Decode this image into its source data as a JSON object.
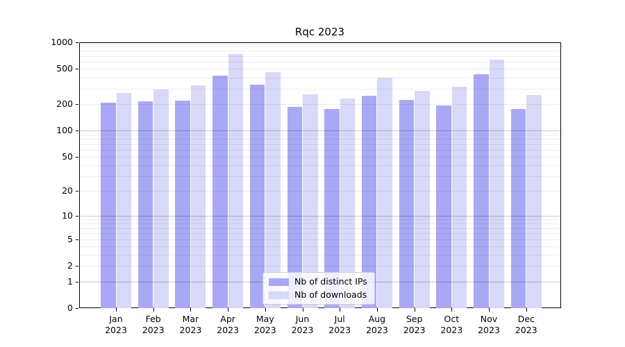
{
  "title": "Rqc 2023",
  "colors": {
    "bar_distinct_ips": "#a8a8f6",
    "bar_downloads": "#d8d8f9",
    "axis": "#000000",
    "legend_border": "#cccccc"
  },
  "chart_data": {
    "type": "bar",
    "title": "Rqc 2023",
    "categories": [
      "Jan 2023",
      "Feb 2023",
      "Mar 2023",
      "Apr 2023",
      "May 2023",
      "Jun 2023",
      "Jul 2023",
      "Aug 2023",
      "Sep 2023",
      "Oct 2023",
      "Nov 2023",
      "Dec 2023"
    ],
    "series": [
      {
        "name": "Nb of distinct IPs",
        "color": "#a8a8f6",
        "values": [
          208,
          215,
          218,
          418,
          334,
          185,
          176,
          250,
          223,
          192,
          436,
          177
        ]
      },
      {
        "name": "Nb of downloads",
        "color": "#d8d8f9",
        "values": [
          266,
          292,
          324,
          740,
          457,
          258,
          233,
          401,
          282,
          317,
          641,
          255
        ]
      }
    ],
    "yscale": "log1p",
    "ylim": [
      0,
      1000
    ],
    "yticks": [
      1000,
      500,
      200,
      100,
      50,
      20,
      10,
      5,
      2,
      1,
      0
    ],
    "grid_major_values": [
      1,
      10,
      100
    ],
    "grid_minor_decades": [
      1,
      10,
      100
    ],
    "xlabel": "",
    "ylabel": "",
    "legend_position": "lower center",
    "grid": true
  }
}
